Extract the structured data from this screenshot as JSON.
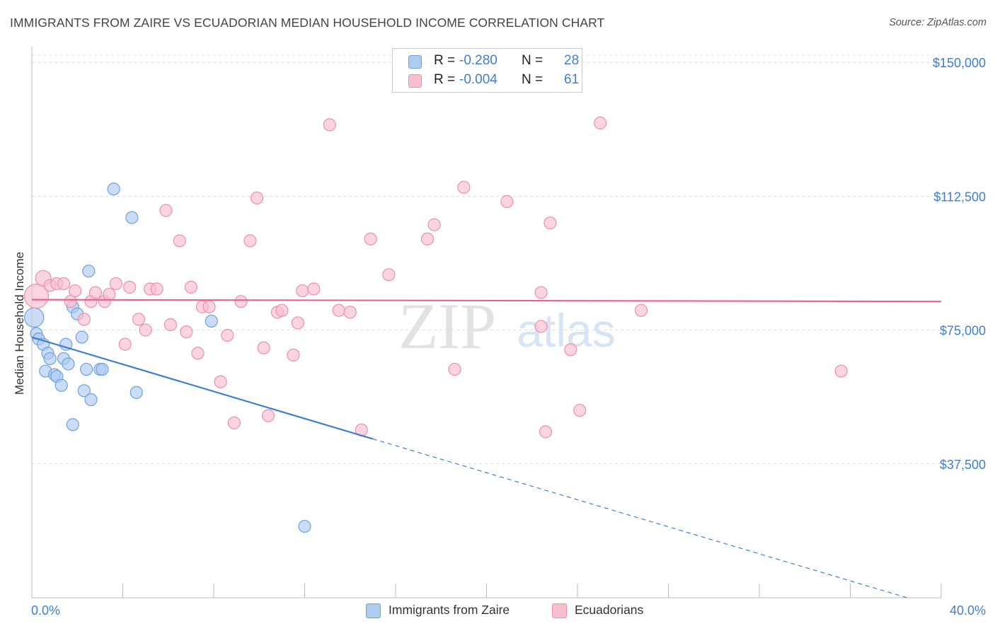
{
  "title": "IMMIGRANTS FROM ZAIRE VS ECUADORIAN MEDIAN HOUSEHOLD INCOME CORRELATION CHART",
  "source": "Source: ZipAtlas.com",
  "watermark": {
    "zip": "ZIP",
    "atlas": "atlas"
  },
  "legend": {
    "rows": [
      {
        "r_label": "R =",
        "r_value": "-0.280",
        "n_label": "N =",
        "n_value": "28",
        "swatch_fill": "#aecbf0",
        "swatch_stroke": "#6fa1e0"
      },
      {
        "r_label": "R =",
        "r_value": "-0.004",
        "n_label": "N =",
        "n_value": "61",
        "swatch_fill": "#f7bfd0",
        "swatch_stroke": "#ee8fad"
      }
    ]
  },
  "bottom_legend": [
    {
      "label": "Immigrants from Zaire",
      "fill": "#aecbf0",
      "stroke": "#6fa1e0"
    },
    {
      "label": "Ecuadorians",
      "fill": "#f7bfd0",
      "stroke": "#ee8fad"
    }
  ],
  "chart_data": {
    "type": "scatter",
    "title": "IMMIGRANTS FROM ZAIRE VS ECUADORIAN MEDIAN HOUSEHOLD INCOME CORRELATION CHART",
    "xlabel": "",
    "ylabel": "Median Household Income",
    "xlim": [
      0,
      40
    ],
    "ylim": [
      0,
      152000
    ],
    "x_tick_labels": [
      "0.0%",
      "40.0%"
    ],
    "x_ticks_minor": [
      0,
      4,
      8,
      12,
      16,
      20,
      24,
      28,
      32,
      36,
      40
    ],
    "y_ticks": [
      37500,
      75000,
      112500,
      150000
    ],
    "y_tick_labels": [
      "$37,500",
      "$75,000",
      "$112,500",
      "$150,000"
    ],
    "grid": true,
    "colors": {
      "blue": "#3f7fd1",
      "pink": "#e8648c",
      "tick_label": "#3f7fd1"
    },
    "series": [
      {
        "name": "Immigrants from Zaire",
        "fill": "#aecbf0",
        "stroke": "#6fa1e0",
        "trend": {
          "x": [
            0,
            15
          ],
          "y": [
            73000,
            44500
          ],
          "color": "#3f7fd1"
        },
        "trend_extension": {
          "x": [
            15,
            38.5
          ],
          "y": [
            44500,
            0
          ],
          "color": "#3f7fd1",
          "dashed": true
        },
        "points": [
          [
            0.1,
            78500,
            1.6
          ],
          [
            0.2,
            74000,
            1.0
          ],
          [
            0.3,
            72500,
            1.0
          ],
          [
            0.5,
            71000,
            1.0
          ],
          [
            0.7,
            68500,
            1.0
          ],
          [
            0.8,
            67000,
            1.0
          ],
          [
            0.6,
            63500,
            1.0
          ],
          [
            1.0,
            62500,
            1.0
          ],
          [
            1.1,
            62000,
            1.0
          ],
          [
            1.3,
            59500,
            1.0
          ],
          [
            1.4,
            67000,
            1.0
          ],
          [
            1.5,
            71000,
            1.0
          ],
          [
            1.6,
            65500,
            1.0
          ],
          [
            1.8,
            81500,
            1.0
          ],
          [
            2.0,
            79500,
            1.0
          ],
          [
            2.2,
            73000,
            1.0
          ],
          [
            2.3,
            58000,
            1.0
          ],
          [
            2.4,
            64000,
            1.0
          ],
          [
            2.6,
            55500,
            1.0
          ],
          [
            1.8,
            48500,
            1.0
          ],
          [
            2.5,
            91500,
            1.0
          ],
          [
            3.0,
            64000,
            1.0
          ],
          [
            3.1,
            64000,
            1.0
          ],
          [
            3.6,
            114500,
            1.0
          ],
          [
            4.4,
            106500,
            1.0
          ],
          [
            4.6,
            57500,
            1.0
          ],
          [
            7.9,
            77500,
            1.0
          ],
          [
            12.0,
            20000,
            1.0
          ]
        ]
      },
      {
        "name": "Ecuadorians",
        "fill": "#f7bfd0",
        "stroke": "#ee8fad",
        "trend": {
          "x": [
            0,
            40
          ],
          "y": [
            83500,
            83000
          ],
          "color": "#e8648c"
        },
        "points": [
          [
            0.2,
            84500,
            2.0
          ],
          [
            0.5,
            89500,
            1.3
          ],
          [
            0.8,
            87500,
            1.0
          ],
          [
            1.1,
            88000,
            1.0
          ],
          [
            1.4,
            88000,
            1.0
          ],
          [
            1.7,
            83000,
            1.0
          ],
          [
            1.9,
            86000,
            1.0
          ],
          [
            2.3,
            78000,
            1.0
          ],
          [
            2.6,
            83000,
            1.0
          ],
          [
            2.8,
            85500,
            1.0
          ],
          [
            3.2,
            83000,
            1.0
          ],
          [
            3.4,
            85000,
            1.0
          ],
          [
            3.7,
            88000,
            1.0
          ],
          [
            4.1,
            71000,
            1.0
          ],
          [
            4.3,
            87000,
            1.0
          ],
          [
            4.7,
            78000,
            1.0
          ],
          [
            5.0,
            75000,
            1.0
          ],
          [
            5.2,
            86500,
            1.0
          ],
          [
            5.5,
            86500,
            1.0
          ],
          [
            5.9,
            108500,
            1.0
          ],
          [
            6.1,
            76500,
            1.0
          ],
          [
            6.5,
            100000,
            1.0
          ],
          [
            6.8,
            74500,
            1.0
          ],
          [
            7.0,
            87000,
            1.0
          ],
          [
            7.3,
            68500,
            1.0
          ],
          [
            7.5,
            81500,
            1.0
          ],
          [
            7.8,
            81500,
            1.0
          ],
          [
            8.3,
            60500,
            1.0
          ],
          [
            8.6,
            73500,
            1.0
          ],
          [
            8.9,
            49000,
            1.0
          ],
          [
            9.2,
            83000,
            1.0
          ],
          [
            9.6,
            100000,
            1.0
          ],
          [
            9.9,
            112000,
            1.0
          ],
          [
            10.2,
            70000,
            1.0
          ],
          [
            10.4,
            51000,
            1.0
          ],
          [
            10.8,
            80000,
            1.0
          ],
          [
            11.0,
            80500,
            1.0
          ],
          [
            11.5,
            68000,
            1.0
          ],
          [
            11.7,
            77000,
            1.0
          ],
          [
            11.9,
            86000,
            1.0
          ],
          [
            12.4,
            86500,
            1.0
          ],
          [
            13.1,
            132500,
            1.0
          ],
          [
            13.5,
            80500,
            1.0
          ],
          [
            14.0,
            80000,
            1.0
          ],
          [
            14.5,
            47000,
            1.0
          ],
          [
            14.9,
            100500,
            1.0
          ],
          [
            15.7,
            90500,
            1.0
          ],
          [
            17.4,
            100500,
            1.0
          ],
          [
            17.7,
            104500,
            1.0
          ],
          [
            18.6,
            64000,
            1.0
          ],
          [
            19.0,
            115000,
            1.0
          ],
          [
            20.9,
            111000,
            1.0
          ],
          [
            22.4,
            76000,
            1.0
          ],
          [
            22.4,
            85500,
            1.0
          ],
          [
            22.6,
            46500,
            1.0
          ],
          [
            22.8,
            105000,
            1.0
          ],
          [
            23.7,
            69500,
            1.0
          ],
          [
            24.1,
            52500,
            1.0
          ],
          [
            25.0,
            133000,
            1.0
          ],
          [
            26.8,
            80500,
            1.0
          ],
          [
            35.6,
            63500,
            1.0
          ]
        ]
      }
    ]
  }
}
